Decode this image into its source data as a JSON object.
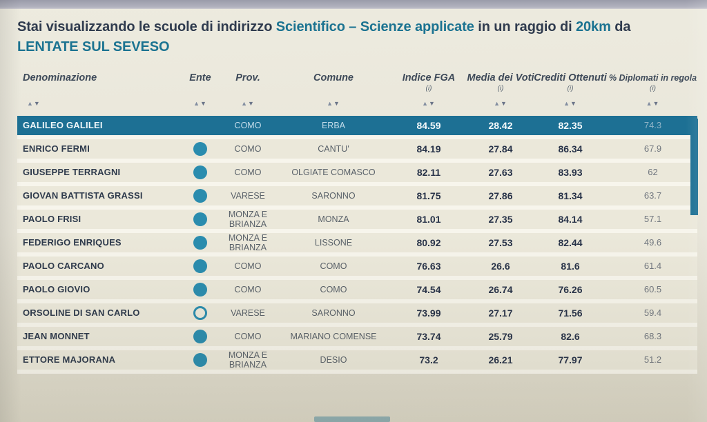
{
  "title": {
    "prefix": "Stai visualizzando le scuole di indirizzo",
    "program": "Scientifico – Scienze applicate",
    "middle": "in un raggio di",
    "radius": "20km",
    "da": "da",
    "location": "LENTATE SUL SEVESO"
  },
  "table": {
    "sort": {
      "up": "▲",
      "down": "▼"
    },
    "columns": [
      {
        "key": "name",
        "label": "Denominazione",
        "info": ""
      },
      {
        "key": "ente",
        "label": "Ente",
        "info": ""
      },
      {
        "key": "prov",
        "label": "Prov.",
        "info": ""
      },
      {
        "key": "comune",
        "label": "Comune",
        "info": ""
      },
      {
        "key": "fga",
        "label": "Indice FGA",
        "info": "(i)"
      },
      {
        "key": "media",
        "label": "Media dei Voti",
        "info": "(i)"
      },
      {
        "key": "crediti",
        "label": "Crediti Ottenuti",
        "info": "(i)"
      },
      {
        "key": "pct",
        "label": "% Diplomati in regola",
        "info": "(i)"
      }
    ],
    "rows": [
      {
        "name": "GALILEO GALILEI",
        "ente": "none",
        "prov": "COMO",
        "comune": "ERBA",
        "fga": "84.59",
        "media": "28.42",
        "crediti": "82.35",
        "pct": "74.3",
        "highlighted": true
      },
      {
        "name": "ENRICO FERMI",
        "ente": "filled",
        "prov": "COMO",
        "comune": "CANTU'",
        "fga": "84.19",
        "media": "27.84",
        "crediti": "86.34",
        "pct": "67.9"
      },
      {
        "name": "GIUSEPPE TERRAGNI",
        "ente": "filled",
        "prov": "COMO",
        "comune": "OLGIATE COMASCO",
        "fga": "82.11",
        "media": "27.63",
        "crediti": "83.93",
        "pct": "62"
      },
      {
        "name": "GIOVAN BATTISTA GRASSI",
        "ente": "filled",
        "prov": "VARESE",
        "comune": "SARONNO",
        "fga": "81.75",
        "media": "27.86",
        "crediti": "81.34",
        "pct": "63.7"
      },
      {
        "name": "PAOLO FRISI",
        "ente": "filled",
        "prov": "MONZA E BRIANZA",
        "comune": "MONZA",
        "fga": "81.01",
        "media": "27.35",
        "crediti": "84.14",
        "pct": "57.1"
      },
      {
        "name": "FEDERIGO ENRIQUES",
        "ente": "filled",
        "prov": "MONZA E BRIANZA",
        "comune": "LISSONE",
        "fga": "80.92",
        "media": "27.53",
        "crediti": "82.44",
        "pct": "49.6"
      },
      {
        "name": "PAOLO CARCANO",
        "ente": "filled",
        "prov": "COMO",
        "comune": "COMO",
        "fga": "76.63",
        "media": "26.6",
        "crediti": "81.6",
        "pct": "61.4"
      },
      {
        "name": "PAOLO GIOVIO",
        "ente": "filled",
        "prov": "COMO",
        "comune": "COMO",
        "fga": "74.54",
        "media": "26.74",
        "crediti": "76.26",
        "pct": "60.5"
      },
      {
        "name": "ORSOLINE DI SAN CARLO",
        "ente": "open",
        "prov": "VARESE",
        "comune": "SARONNO",
        "fga": "73.99",
        "media": "27.17",
        "crediti": "71.56",
        "pct": "59.4"
      },
      {
        "name": "JEAN MONNET",
        "ente": "filled",
        "prov": "COMO",
        "comune": "MARIANO COMENSE",
        "fga": "73.74",
        "media": "25.79",
        "crediti": "82.6",
        "pct": "68.3"
      },
      {
        "name": "ETTORE MAJORANA",
        "ente": "filled",
        "prov": "MONZA E BRIANZA",
        "comune": "DESIO",
        "fga": "73.2",
        "media": "26.21",
        "crediti": "77.97",
        "pct": "51.2"
      }
    ]
  },
  "colors": {
    "accent": "#1b7391",
    "row_highlight": "#1d7094",
    "ente_dot": "#2a8cae",
    "title_navy": "#2f3b4e"
  }
}
